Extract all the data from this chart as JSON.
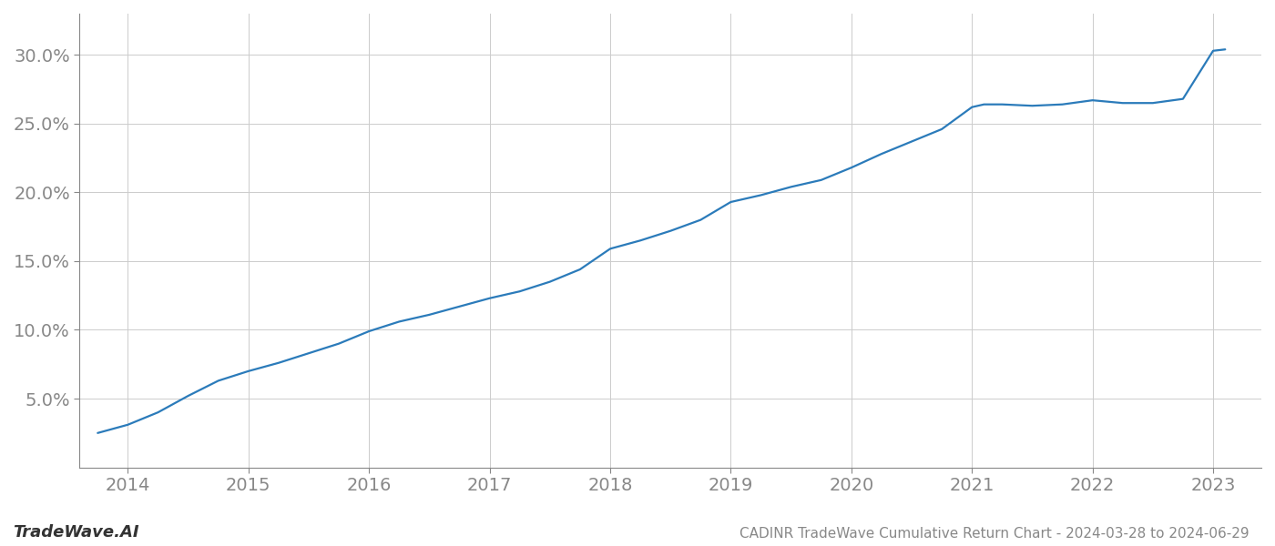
{
  "title": "CADINR TradeWave Cumulative Return Chart - 2024-03-28 to 2024-06-29",
  "watermark": "TradeWave.AI",
  "line_color": "#2b7bba",
  "background_color": "#ffffff",
  "grid_color": "#cccccc",
  "x_values": [
    2013.75,
    2014.0,
    2014.25,
    2014.5,
    2014.75,
    2015.0,
    2015.25,
    2015.5,
    2015.75,
    2016.0,
    2016.25,
    2016.5,
    2016.75,
    2017.0,
    2017.25,
    2017.5,
    2017.75,
    2018.0,
    2018.25,
    2018.5,
    2018.75,
    2019.0,
    2019.25,
    2019.5,
    2019.75,
    2020.0,
    2020.25,
    2020.5,
    2020.75,
    2021.0,
    2021.1,
    2021.25,
    2021.5,
    2021.75,
    2022.0,
    2022.25,
    2022.5,
    2022.75,
    2023.0,
    2023.1
  ],
  "y_values": [
    2.5,
    3.1,
    4.0,
    5.2,
    6.3,
    7.0,
    7.6,
    8.3,
    9.0,
    9.9,
    10.6,
    11.1,
    11.7,
    12.3,
    12.8,
    13.5,
    14.4,
    15.9,
    16.5,
    17.2,
    18.0,
    19.3,
    19.8,
    20.4,
    20.9,
    21.8,
    22.8,
    23.7,
    24.6,
    26.2,
    26.4,
    26.4,
    26.3,
    26.4,
    26.7,
    26.5,
    26.5,
    26.8,
    30.3,
    30.4
  ],
  "xlim": [
    2013.6,
    2023.4
  ],
  "ylim": [
    0,
    33
  ],
  "yticks": [
    5.0,
    10.0,
    15.0,
    20.0,
    25.0,
    30.0
  ],
  "xticks": [
    2014,
    2015,
    2016,
    2017,
    2018,
    2019,
    2020,
    2021,
    2022,
    2023
  ],
  "line_width": 1.6,
  "title_fontsize": 11,
  "tick_fontsize": 14,
  "watermark_fontsize": 13
}
